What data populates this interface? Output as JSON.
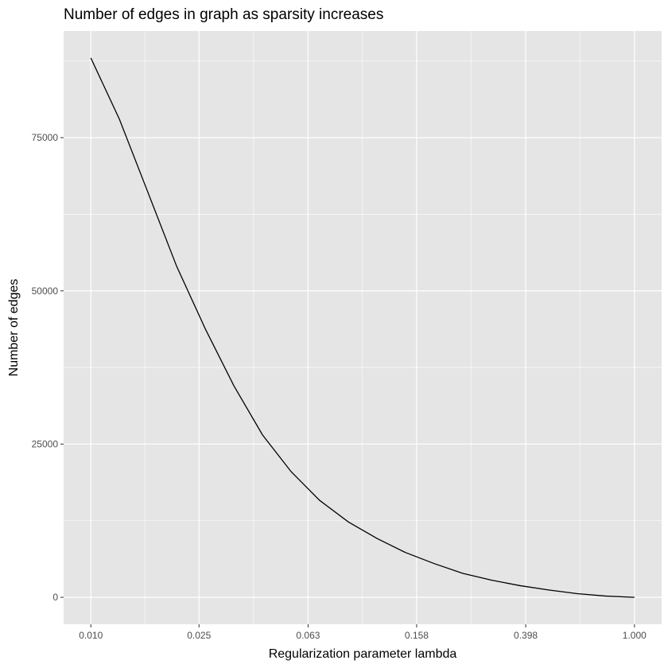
{
  "chart_data": {
    "type": "line",
    "title": "Number of edges in graph as sparsity increases",
    "xlabel": "Regularization parameter lambda",
    "ylabel": "Number of edges",
    "x_scale": "log10",
    "x_ticks": [
      0.01,
      0.025,
      0.063,
      0.158,
      0.398,
      1.0
    ],
    "x_tick_labels": [
      "0.010",
      "0.025",
      "0.063",
      "0.158",
      "0.398",
      "1.000"
    ],
    "y_ticks": [
      0,
      25000,
      50000,
      75000
    ],
    "y_tick_labels": [
      "0",
      "25000",
      "50000",
      "75000"
    ],
    "xlim": [
      0.00794,
      1.259
    ],
    "ylim": [
      -4400,
      92400
    ],
    "grid": true,
    "background": "#E5E5E5",
    "grid_color": "#FFFFFF",
    "line_color": "#000000",
    "series": [
      {
        "x": [
          0.01,
          0.01274,
          0.01624,
          0.02069,
          0.02637,
          0.0336,
          0.04281,
          0.05456,
          0.06952,
          0.08859,
          0.11288,
          0.14384,
          0.1833,
          0.23357,
          0.29764,
          0.37927,
          0.48329,
          0.61585,
          0.78476,
          1.0
        ],
        "values": [
          88000,
          78000,
          66000,
          54000,
          43800,
          34500,
          26500,
          20500,
          15800,
          12300,
          9600,
          7300,
          5500,
          3900,
          2800,
          1900,
          1200,
          600,
          200,
          0
        ]
      }
    ]
  }
}
